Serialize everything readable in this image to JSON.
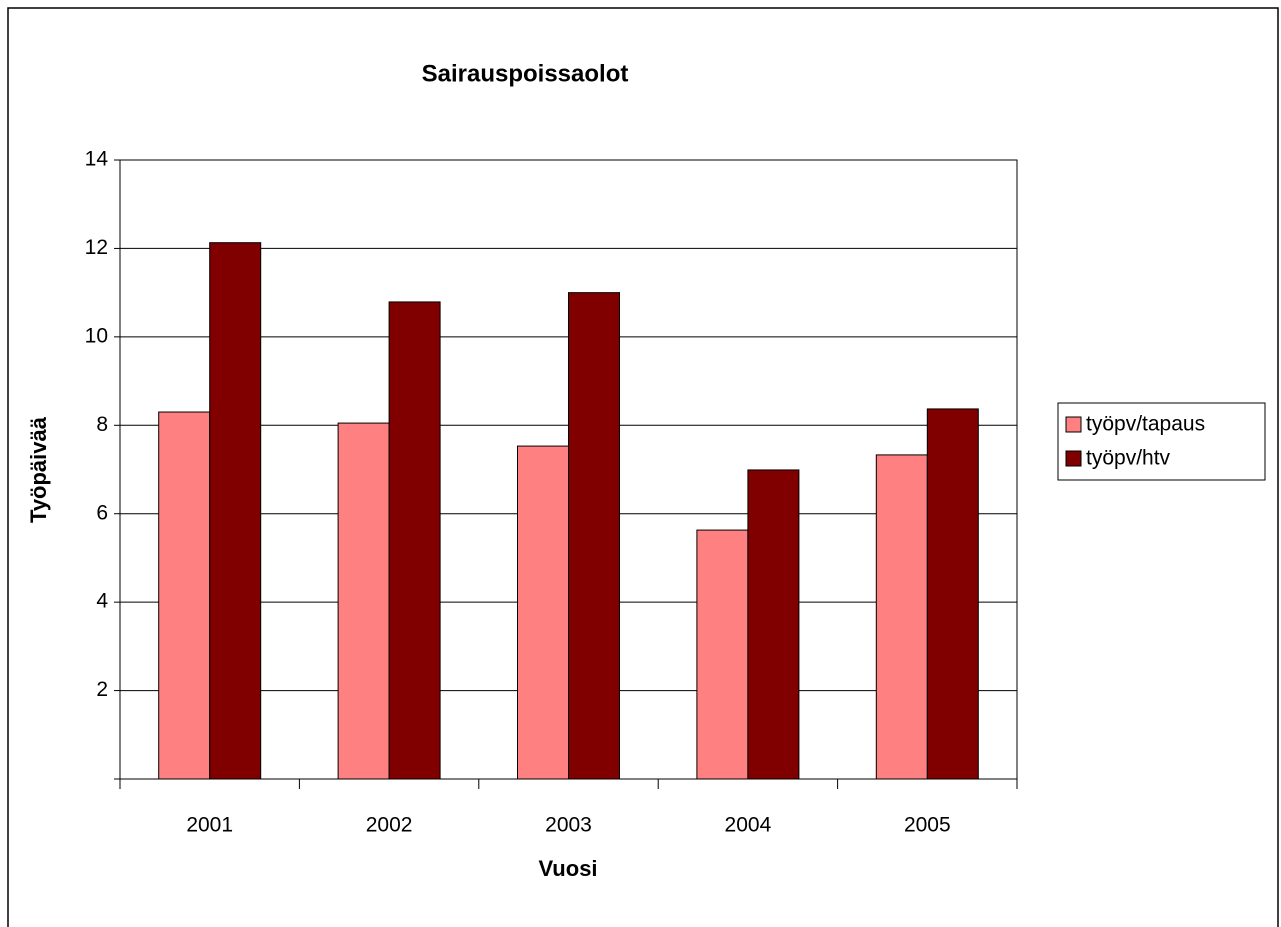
{
  "chart_data": {
    "type": "bar",
    "title": "Sairauspoissaolot",
    "x_label": "Vuosi",
    "y_label": "Työpäivää",
    "categories": [
      "2001",
      "2002",
      "2003",
      "2004",
      "2005"
    ],
    "series": [
      {
        "name": "työpv/tapaus",
        "color": "#ff8080",
        "values": [
          8.3,
          8.05,
          7.53,
          5.63,
          7.33
        ]
      },
      {
        "name": "työpv/htv",
        "color": "#800000",
        "values": [
          12.13,
          10.79,
          11.0,
          6.99,
          8.37
        ]
      }
    ],
    "ylim": [
      0,
      14
    ],
    "yticks": [
      2,
      4,
      6,
      8,
      10,
      12,
      14
    ],
    "grid": true,
    "legend": "right"
  }
}
